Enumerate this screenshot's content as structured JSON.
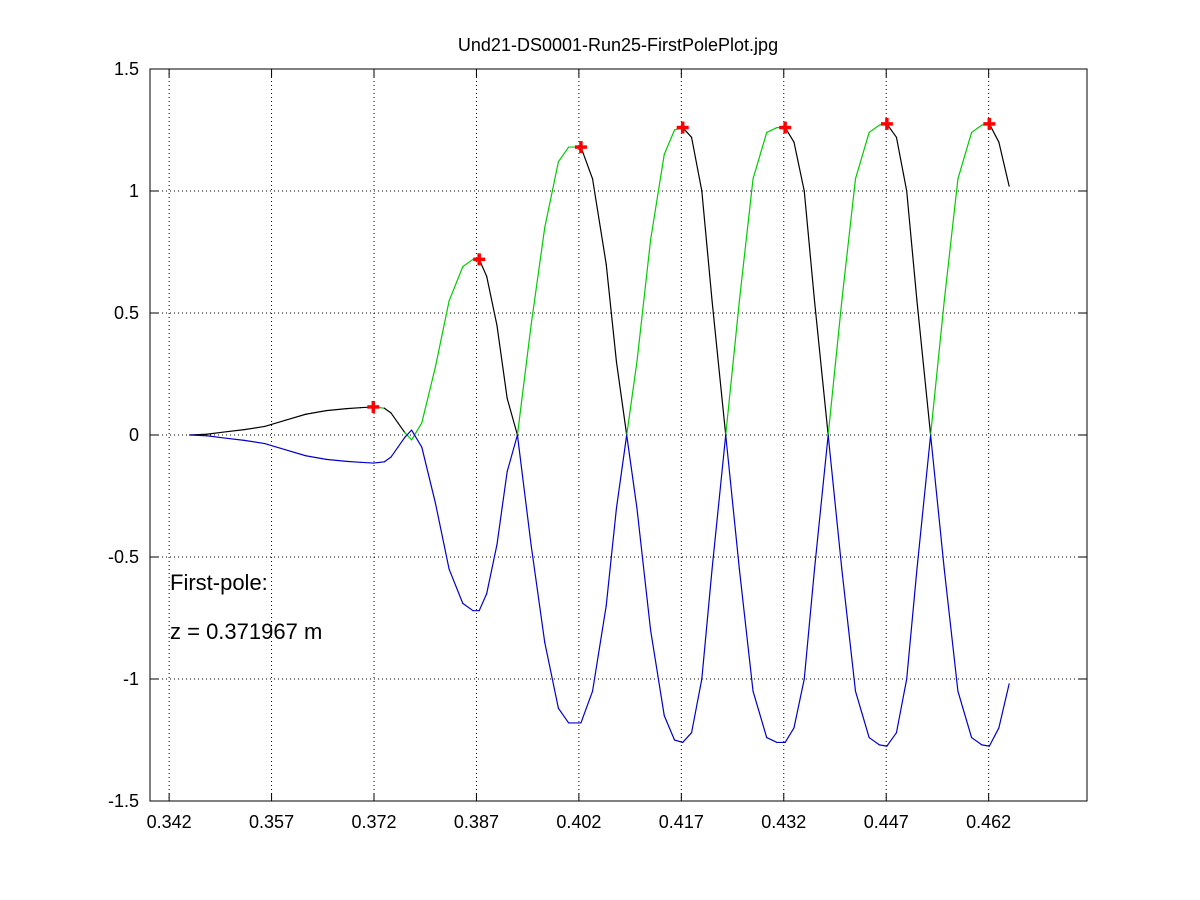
{
  "chart_data": {
    "type": "line",
    "title": "Und21-DS0001-Run25-FirstPolePlot.jpg",
    "xlabel": "",
    "ylabel": "",
    "xlim": [
      0.3392,
      0.4764
    ],
    "ylim": [
      -1.5,
      1.5
    ],
    "xticks": [
      "0.342",
      "0.357",
      "0.372",
      "0.387",
      "0.402",
      "0.417",
      "0.432",
      "0.447",
      "0.462"
    ],
    "yticks": [
      "1.5",
      "1",
      "0.5",
      "0",
      "-0.5",
      "-1",
      "-1.5"
    ],
    "grid": true,
    "annotations": [
      "First-pole:",
      "z = 0.371967  m"
    ],
    "colors": {
      "upper": "#00cc00",
      "lower": "#0000cc",
      "transition": "#000000",
      "peak_marker": "#ff0000"
    },
    "peak_markers": {
      "x": [
        0.3719,
        0.3874,
        0.4023,
        0.4172,
        0.4322,
        0.4471,
        0.4621
      ],
      "y": [
        0.115,
        0.72,
        1.18,
        1.26,
        1.26,
        1.275,
        1.275
      ]
    },
    "series": [
      {
        "color_key": "upper",
        "x": [
          0.345,
          0.3475,
          0.35,
          0.353,
          0.356,
          0.359,
          0.362,
          0.365,
          0.368,
          0.37,
          0.3719,
          0.3735,
          0.3745,
          0.3755,
          0.3765,
          0.3775,
          0.379,
          0.381,
          0.383,
          0.385,
          0.3865,
          0.3874,
          0.3885,
          0.39,
          0.3915,
          0.393,
          0.395,
          0.397,
          0.399,
          0.4005,
          0.4023,
          0.404,
          0.406,
          0.4075,
          0.409,
          0.4105,
          0.4125,
          0.4145,
          0.416,
          0.4172,
          0.4185,
          0.42,
          0.4215,
          0.4235,
          0.4255,
          0.4275,
          0.4295,
          0.431,
          0.4322,
          0.4335,
          0.435,
          0.4365,
          0.4385,
          0.4405,
          0.4425,
          0.4445,
          0.446,
          0.4471,
          0.4485,
          0.45,
          0.4515,
          0.4535,
          0.4555,
          0.4575,
          0.4595,
          0.461,
          0.4621,
          0.4635,
          0.465
        ],
        "y": [
          0.0,
          0.003,
          0.012,
          0.022,
          0.035,
          0.06,
          0.085,
          0.1,
          0.108,
          0.112,
          0.115,
          0.11,
          0.09,
          0.05,
          0.01,
          -0.02,
          0.05,
          0.28,
          0.55,
          0.69,
          0.72,
          0.72,
          0.65,
          0.45,
          0.15,
          0.0,
          0.45,
          0.85,
          1.12,
          1.18,
          1.18,
          1.05,
          0.7,
          0.3,
          0.0,
          0.3,
          0.8,
          1.15,
          1.25,
          1.26,
          1.22,
          1.0,
          0.55,
          0.0,
          0.55,
          1.05,
          1.24,
          1.26,
          1.26,
          1.2,
          1.0,
          0.55,
          0.0,
          0.55,
          1.05,
          1.24,
          1.27,
          1.275,
          1.22,
          1.0,
          0.55,
          0.0,
          0.55,
          1.05,
          1.24,
          1.27,
          1.275,
          1.2,
          1.02
        ]
      },
      {
        "color_key": "lower",
        "x": [
          0.345,
          0.3475,
          0.35,
          0.353,
          0.356,
          0.359,
          0.362,
          0.365,
          0.368,
          0.37,
          0.3719,
          0.3735,
          0.3745,
          0.3755,
          0.3765,
          0.3775,
          0.379,
          0.381,
          0.383,
          0.385,
          0.3865,
          0.3874,
          0.3885,
          0.39,
          0.3915,
          0.393,
          0.395,
          0.397,
          0.399,
          0.4005,
          0.4023,
          0.404,
          0.406,
          0.4075,
          0.409,
          0.4105,
          0.4125,
          0.4145,
          0.416,
          0.4172,
          0.4185,
          0.42,
          0.4215,
          0.4235,
          0.4255,
          0.4275,
          0.4295,
          0.431,
          0.4322,
          0.4335,
          0.435,
          0.4365,
          0.4385,
          0.4405,
          0.4425,
          0.4445,
          0.446,
          0.4471,
          0.4485,
          0.45,
          0.4515,
          0.4535,
          0.4555,
          0.4575,
          0.4595,
          0.461,
          0.4621,
          0.4635,
          0.465
        ],
        "y": [
          0.0,
          -0.003,
          -0.012,
          -0.022,
          -0.035,
          -0.06,
          -0.085,
          -0.1,
          -0.108,
          -0.112,
          -0.115,
          -0.11,
          -0.09,
          -0.05,
          -0.01,
          0.02,
          -0.05,
          -0.28,
          -0.55,
          -0.69,
          -0.72,
          -0.72,
          -0.65,
          -0.45,
          -0.15,
          0.0,
          -0.45,
          -0.85,
          -1.12,
          -1.18,
          -1.18,
          -1.05,
          -0.7,
          -0.3,
          0.0,
          -0.3,
          -0.8,
          -1.15,
          -1.25,
          -1.26,
          -1.22,
          -1.0,
          -0.55,
          0.0,
          -0.55,
          -1.05,
          -1.24,
          -1.26,
          -1.26,
          -1.2,
          -1.0,
          -0.55,
          0.0,
          -0.55,
          -1.05,
          -1.24,
          -1.27,
          -1.275,
          -1.22,
          -1.0,
          -0.55,
          0.0,
          -0.55,
          -1.05,
          -1.24,
          -1.27,
          -1.275,
          -1.2,
          -1.02
        ]
      }
    ]
  }
}
